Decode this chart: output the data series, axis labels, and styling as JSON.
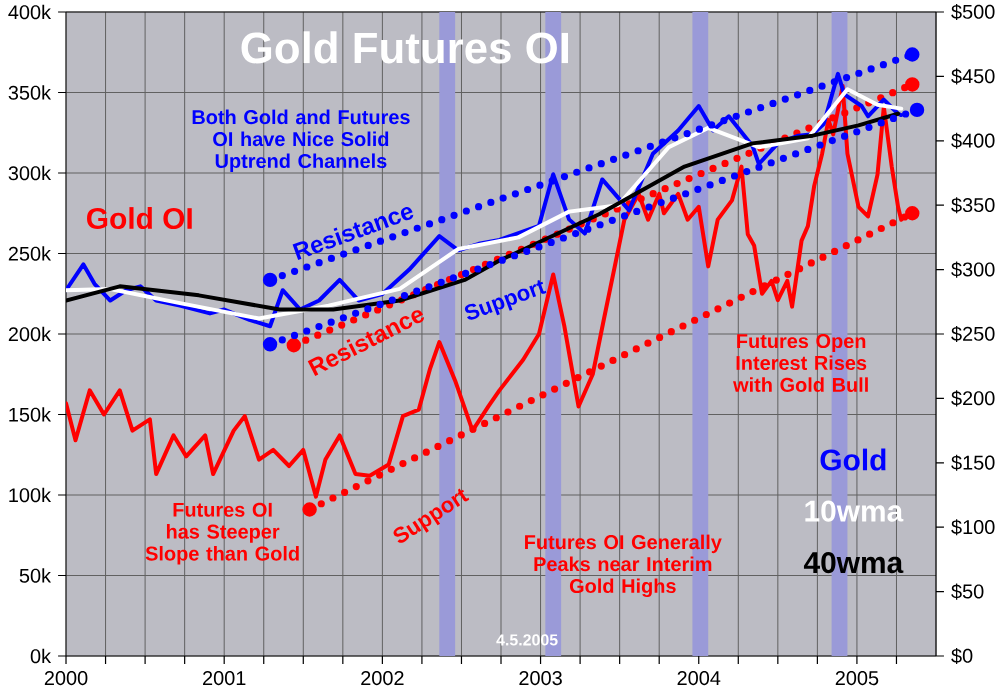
{
  "chart_data": {
    "type": "line",
    "title": "Gold Futures OI",
    "xlim": [
      2000,
      2005.5
    ],
    "xticks": [
      2000,
      {
        "value": 2000.25,
        "label": null
      },
      {
        "value": 2000.5,
        "label": null
      },
      {
        "value": 2000.75,
        "label": null
      },
      2001,
      {
        "value": 2001.25,
        "label": null
      },
      {
        "value": 2001.5,
        "label": null
      },
      {
        "value": 2001.75,
        "label": null
      },
      2002,
      {
        "value": 2002.25,
        "label": null
      },
      {
        "value": 2002.5,
        "label": null
      },
      {
        "value": 2002.75,
        "label": null
      },
      2003,
      {
        "value": 2003.25,
        "label": null
      },
      {
        "value": 2003.5,
        "label": null
      },
      {
        "value": 2003.75,
        "label": null
      },
      2004,
      {
        "value": 2004.25,
        "label": null
      },
      {
        "value": 2004.5,
        "label": null
      },
      {
        "value": 2004.75,
        "label": null
      },
      2005,
      {
        "value": 2005.25,
        "label": null
      }
    ],
    "ylim": [
      0,
      400000
    ],
    "yticks": [
      {
        "value": 0,
        "label": "0k"
      },
      {
        "value": 50000,
        "label": "50k"
      },
      {
        "value": 100000,
        "label": "100k"
      },
      {
        "value": 150000,
        "label": "150k"
      },
      {
        "value": 200000,
        "label": "200k"
      },
      {
        "value": 250000,
        "label": "250k"
      },
      {
        "value": 300000,
        "label": "300k"
      },
      {
        "value": 350000,
        "label": "350k"
      },
      {
        "value": 400000,
        "label": "400k"
      }
    ],
    "y2lim": [
      0,
      500
    ],
    "y2ticks": [
      {
        "value": 0,
        "label": "$0"
      },
      {
        "value": 50,
        "label": "$50"
      },
      {
        "value": 100,
        "label": "$100"
      },
      {
        "value": 150,
        "label": "$150"
      },
      {
        "value": 200,
        "label": "$200"
      },
      {
        "value": 250,
        "label": "$250"
      },
      {
        "value": 300,
        "label": "$300"
      },
      {
        "value": 350,
        "label": "$350"
      },
      {
        "value": 400,
        "label": "$400"
      },
      {
        "value": 450,
        "label": "$450"
      },
      {
        "value": 500,
        "label": "$500"
      }
    ],
    "grid": true,
    "marker": "none",
    "series": [
      {
        "name": "Gold OI",
        "color": "#ff0000",
        "x": [
          2000.0,
          2000.06,
          2000.15,
          2000.24,
          2000.34,
          2000.42,
          2000.53,
          2000.57,
          2000.68,
          2000.76,
          2000.88,
          2000.93,
          2001.06,
          2001.13,
          2001.22,
          2001.31,
          2001.41,
          2001.5,
          2001.58,
          2001.64,
          2001.73,
          2001.83,
          2001.92,
          2002.04,
          2002.13,
          2002.23,
          2002.3,
          2002.36,
          2002.46,
          2002.57,
          2002.67,
          2002.74,
          2002.89,
          2002.99,
          2003.08,
          2003.15,
          2003.24,
          2003.33,
          2003.4,
          2003.53,
          2003.62,
          2003.68,
          2003.75,
          2003.78,
          2003.87,
          2003.93,
          2004.0,
          2004.06,
          2004.12,
          2004.21,
          2004.27,
          2004.31,
          2004.35,
          2004.4,
          2004.46,
          2004.5,
          2004.56,
          2004.59,
          2004.65,
          2004.69,
          2004.73,
          2004.78,
          2004.82,
          2004.85,
          2004.91,
          2004.94,
          2005.01,
          2005.07,
          2005.13,
          2005.17,
          2005.22,
          2005.26,
          2005.28
        ],
        "values": [
          157000,
          134000,
          165000,
          150000,
          165000,
          140000,
          147000,
          113000,
          137000,
          124000,
          137000,
          113000,
          140000,
          149000,
          122000,
          128000,
          118000,
          128000,
          99000,
          122000,
          137000,
          113000,
          112000,
          119000,
          149000,
          153000,
          178000,
          195000,
          171000,
          140000,
          155000,
          165000,
          184000,
          200000,
          237000,
          205000,
          155000,
          175000,
          209000,
          271000,
          287000,
          271000,
          287000,
          275000,
          287000,
          271000,
          279000,
          242000,
          271000,
          283000,
          304000,
          262000,
          255000,
          225000,
          233000,
          221000,
          233000,
          217000,
          258000,
          267000,
          292000,
          312000,
          333000,
          324000,
          354000,
          312000,
          279000,
          273000,
          299000,
          341000,
          304000,
          279000,
          271000
        ]
      },
      {
        "name": "Gold",
        "color": "#0000ff",
        "axis": "y2",
        "x": [
          2000.0,
          2000.11,
          2000.18,
          2000.28,
          2000.38,
          2000.47,
          2000.57,
          2000.72,
          2000.91,
          2001.0,
          2001.16,
          2001.29,
          2001.37,
          2001.48,
          2001.6,
          2001.73,
          2001.85,
          2002.0,
          2002.17,
          2002.36,
          2002.48,
          2002.61,
          2002.74,
          2002.99,
          2003.08,
          2003.18,
          2003.28,
          2003.39,
          2003.56,
          2003.71,
          2003.87,
          2004.0,
          2004.09,
          2004.19,
          2004.34,
          2004.38,
          2004.5,
          2004.63,
          2004.72,
          2004.79,
          2004.88,
          2004.92,
          2005.03,
          2005.07,
          2005.17,
          2005.26,
          2005.28
        ],
        "values": [
          284,
          304,
          289,
          276,
          284,
          287,
          276,
          272,
          266,
          269,
          261,
          256,
          284,
          269,
          276,
          292,
          276,
          281,
          300,
          326,
          315,
          320,
          323,
          334,
          374,
          339,
          328,
          370,
          346,
          390,
          408,
          427,
          408,
          419,
          396,
          382,
          398,
          404,
          405,
          413,
          452,
          436,
          427,
          419,
          432,
          421,
          420
        ]
      },
      {
        "name": "10wma",
        "color": "#ffffff",
        "axis": "y2",
        "x": [
          2000.0,
          2000.28,
          2000.72,
          2001.22,
          2001.66,
          2002.11,
          2002.48,
          2002.86,
          2003.18,
          2003.49,
          2003.81,
          2004.06,
          2004.38,
          2004.69,
          2004.94,
          2005.13,
          2005.28
        ],
        "values": [
          284,
          285,
          274,
          262,
          272,
          285,
          316,
          325,
          345,
          350,
          395,
          410,
          395,
          402,
          440,
          428,
          425
        ]
      },
      {
        "name": "40wma",
        "color": "#000000",
        "axis": "y2",
        "x": [
          2000.0,
          2000.34,
          2000.84,
          2001.35,
          2001.69,
          2002.11,
          2002.52,
          2002.74,
          2003.37,
          2003.91,
          2004.34,
          2004.72,
          2005.01,
          2005.26
        ],
        "values": [
          276,
          287,
          280,
          269,
          269,
          276,
          292,
          307,
          343,
          380,
          398,
          404,
          412,
          421
        ]
      },
      {
        "color": "#0000ff",
        "axis": "y2",
        "line_style": "dotted",
        "x": [
          2001.29,
          2005.35
        ],
        "values": [
          292,
          467
        ]
      },
      {
        "color": "#0000ff",
        "axis": "y2",
        "line_style": "dotted",
        "x": [
          2001.29,
          2005.38
        ],
        "values": [
          242,
          424
        ]
      },
      {
        "color": "#ff0000",
        "line_style": "dotted",
        "x": [
          2001.44,
          2005.35
        ],
        "values": [
          193000,
          355000
        ]
      },
      {
        "color": "#ff0000",
        "line_style": "dotted",
        "x": [
          2001.54,
          2005.35
        ],
        "values": [
          91000,
          275000
        ]
      }
    ],
    "bands": [
      {
        "axis": "x",
        "from": 2002.36,
        "to": 2002.46,
        "color": "#9a9ad8"
      },
      {
        "axis": "x",
        "from": 2003.03,
        "to": 2003.13,
        "color": "#9a9ad8"
      },
      {
        "axis": "x",
        "from": 2003.96,
        "to": 2004.06,
        "color": "#9a9ad8"
      },
      {
        "axis": "x",
        "from": 2004.84,
        "to": 2004.94,
        "color": "#9a9ad8"
      }
    ],
    "annotations": [
      "Both Gold and Futures OI have Nice Solid Uptrend Channels",
      "Resistance",
      "Support",
      "Resistance",
      "Support",
      "Futures OI has Steeper Slope than Gold",
      "Futures OI Generally Peaks near Interim Gold Highs",
      "Futures Open Interest Rises with Gold Bull",
      "4.5.2005"
    ]
  }
}
